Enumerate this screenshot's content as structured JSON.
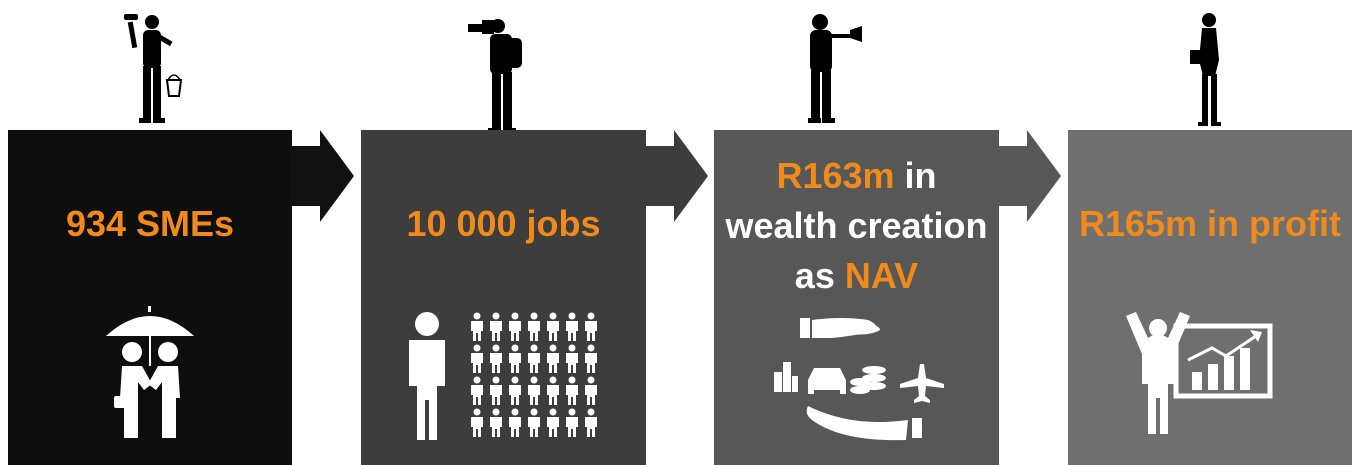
{
  "colors": {
    "accent": "#f08a1c",
    "box1": "#0e0e0e",
    "box2": "#3d3d3d",
    "box3": "#575757",
    "box4": "#6f6f6f",
    "text": "#ffffff"
  },
  "steps": [
    {
      "headline": "934 SMEs",
      "figure_icon": "painter-silhouette-icon",
      "icon": "handshake-umbrella-icon"
    },
    {
      "headline": "10 000 jobs",
      "figure_icon": "photographer-silhouette-icon",
      "icon": "people-group-icon"
    },
    {
      "headline_orange_1": "R163m",
      "headline_white_1": " in",
      "headline_white_2": "wealth creation",
      "headline_white_3": "as ",
      "headline_orange_2": "NAV",
      "figure_icon": "trumpeter-silhouette-icon",
      "icon": "assets-hands-icon"
    },
    {
      "headline": "R165m in profit",
      "figure_icon": "businesswoman-silhouette-icon",
      "icon": "success-chart-icon"
    }
  ]
}
